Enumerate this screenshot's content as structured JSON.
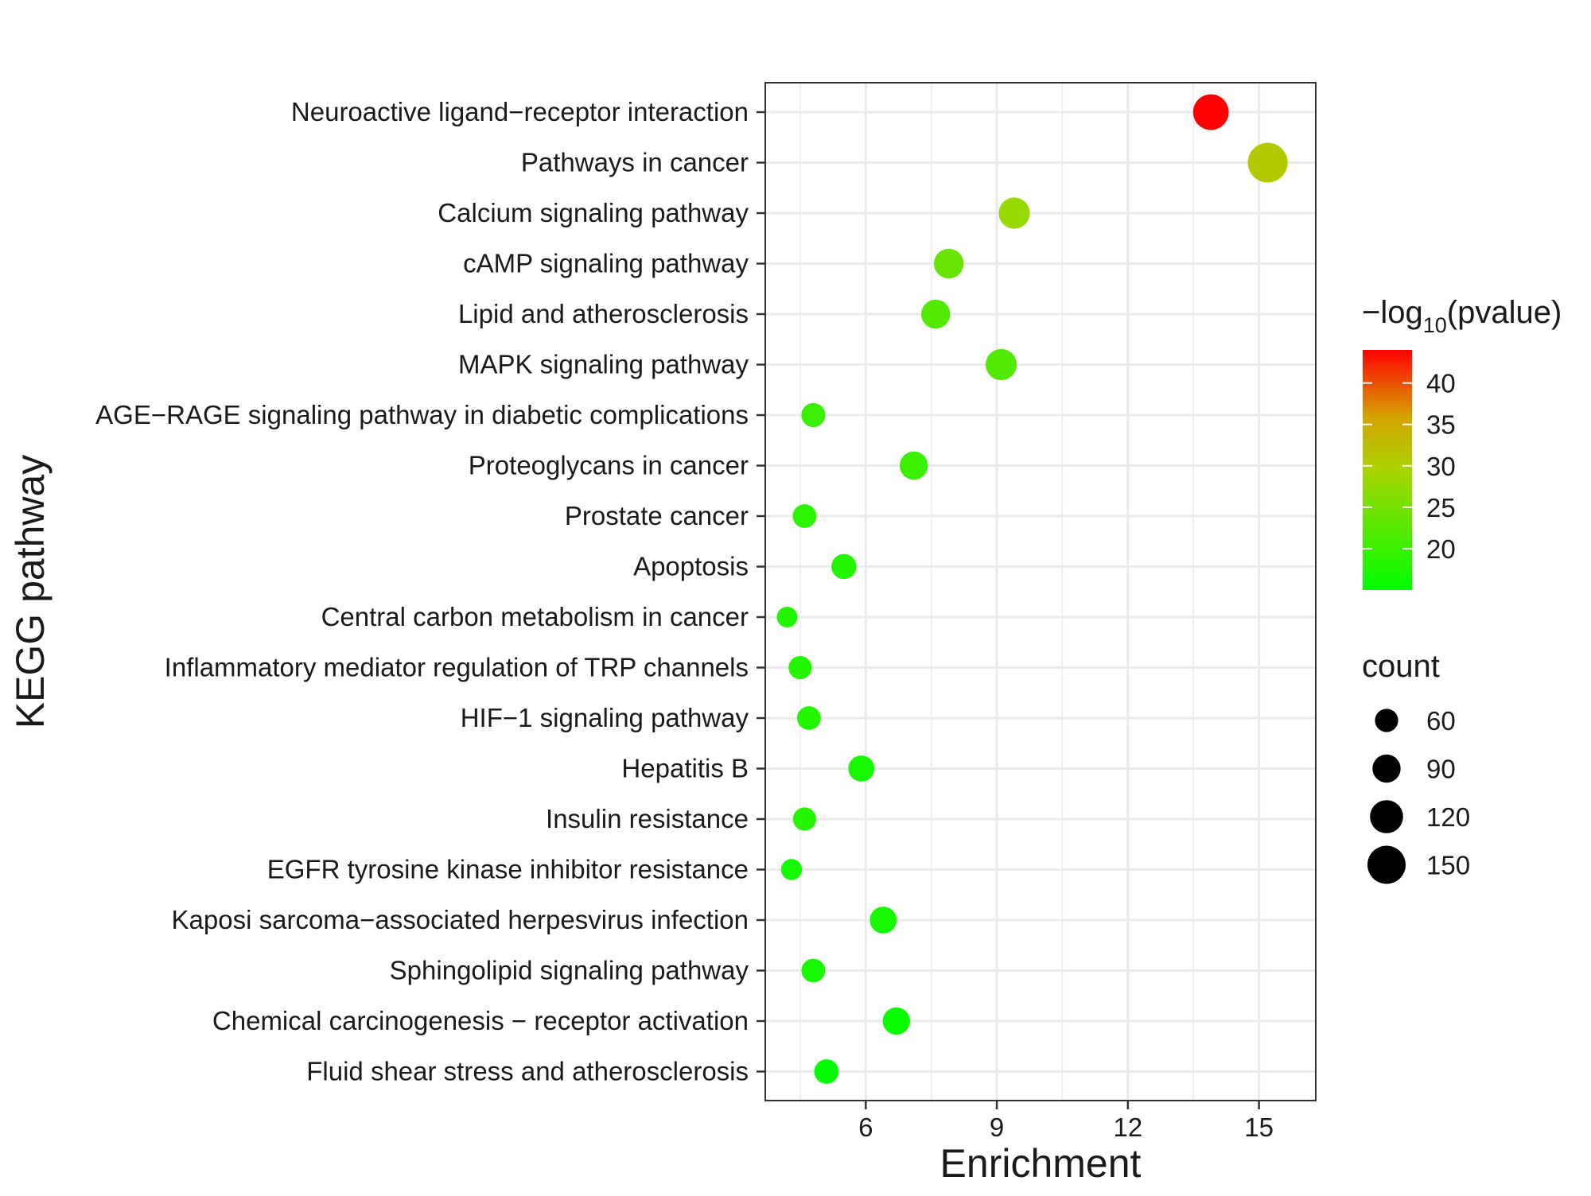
{
  "chart_data": {
    "type": "scatter",
    "title": "",
    "xlabel": "Enrichment",
    "ylabel": "KEGG pathway",
    "xlim": [
      3.7,
      16.3
    ],
    "xticks": [
      6,
      9,
      12,
      15
    ],
    "grid": true,
    "categories": [
      "Neuroactive ligand−receptor interaction",
      "Pathways in cancer",
      "Calcium signaling pathway",
      "cAMP signaling pathway",
      "Lipid and atherosclerosis",
      "MAPK signaling pathway",
      "AGE−RAGE signaling pathway in diabetic complications",
      "Proteoglycans in cancer",
      "Prostate cancer",
      "Apoptosis",
      "Central carbon metabolism in cancer",
      "Inflammatory mediator regulation of TRP channels",
      "HIF−1 signaling pathway",
      "Hepatitis B",
      "Insulin resistance",
      "EGFR tyrosine kinase inhibitor resistance",
      "Kaposi sarcoma−associated herpesvirus infection",
      "Sphingolipid signaling pathway",
      "Chemical carcinogenesis − receptor activation",
      "Fluid shear stress and atherosclerosis"
    ],
    "points": [
      {
        "enrichment": 13.9,
        "neg_log10_p": 44,
        "count": 135
      },
      {
        "enrichment": 15.2,
        "neg_log10_p": 31,
        "count": 160
      },
      {
        "enrichment": 9.4,
        "neg_log10_p": 28,
        "count": 108
      },
      {
        "enrichment": 7.9,
        "neg_log10_p": 24,
        "count": 100
      },
      {
        "enrichment": 7.6,
        "neg_log10_p": 22,
        "count": 95
      },
      {
        "enrichment": 9.1,
        "neg_log10_p": 22,
        "count": 108
      },
      {
        "enrichment": 4.8,
        "neg_log10_p": 20,
        "count": 65
      },
      {
        "enrichment": 7.1,
        "neg_log10_p": 20,
        "count": 90
      },
      {
        "enrichment": 4.6,
        "neg_log10_p": 19,
        "count": 63
      },
      {
        "enrichment": 5.5,
        "neg_log10_p": 18,
        "count": 72
      },
      {
        "enrichment": 4.2,
        "neg_log10_p": 18,
        "count": 45
      },
      {
        "enrichment": 4.5,
        "neg_log10_p": 18,
        "count": 60
      },
      {
        "enrichment": 4.7,
        "neg_log10_p": 18,
        "count": 63
      },
      {
        "enrichment": 5.9,
        "neg_log10_p": 17,
        "count": 78
      },
      {
        "enrichment": 4.6,
        "neg_log10_p": 18,
        "count": 60
      },
      {
        "enrichment": 4.3,
        "neg_log10_p": 17,
        "count": 47
      },
      {
        "enrichment": 6.4,
        "neg_log10_p": 17,
        "count": 82
      },
      {
        "enrichment": 4.8,
        "neg_log10_p": 17,
        "count": 63
      },
      {
        "enrichment": 6.7,
        "neg_log10_p": 16,
        "count": 85
      },
      {
        "enrichment": 5.1,
        "neg_log10_p": 15,
        "count": 68
      }
    ],
    "color_legend": {
      "title_main": "−log",
      "title_sub": "10",
      "title_rest": "(pvalue)",
      "min": 15,
      "max": 44,
      "ticks": [
        20,
        25,
        30,
        35,
        40
      ],
      "low_color": "#00ff00",
      "high_color": "#ff0000"
    },
    "size_legend": {
      "title": "count",
      "entries": [
        60,
        90,
        120,
        150
      ]
    },
    "colors": {
      "panel_border": "#333333",
      "grid": "#ebebeb",
      "point_black": "#000000"
    }
  }
}
